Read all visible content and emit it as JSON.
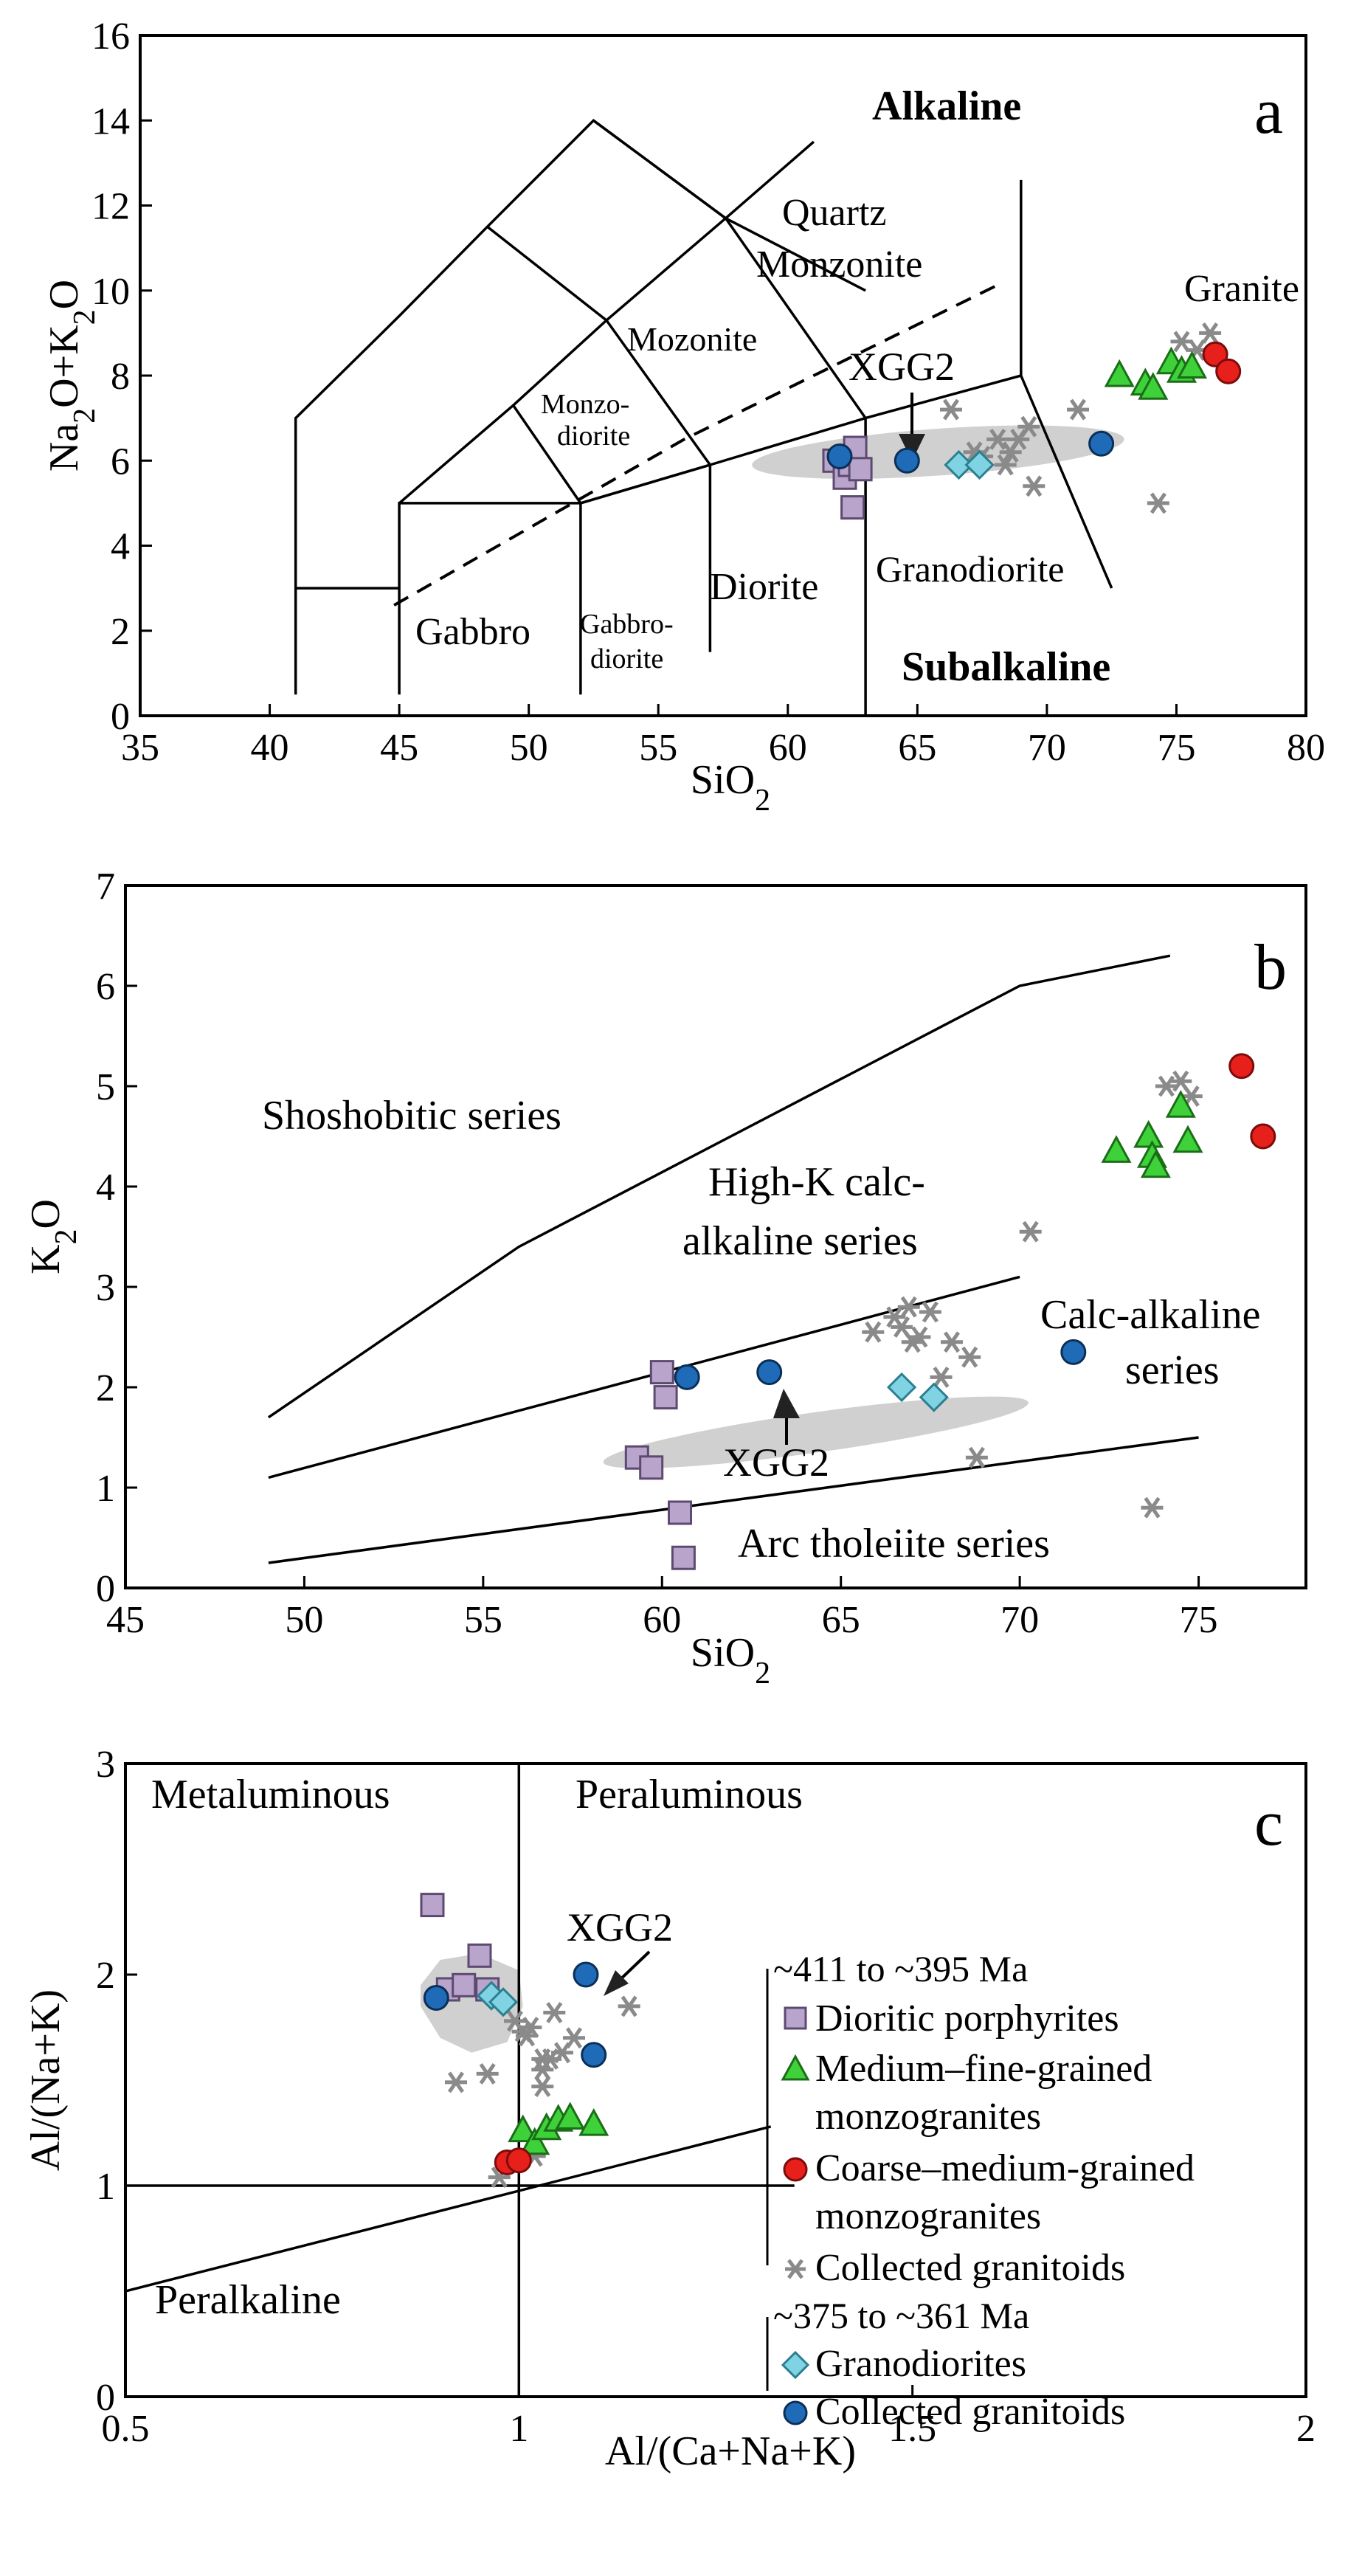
{
  "chart_data": [
    {
      "type": "scatter",
      "panel_label": "a",
      "title": "",
      "xlabel": "SiO<sub>2</sub>",
      "ylabel": "Na<sub>2</sub>O+K<sub>2</sub>O",
      "xlim": [
        35,
        80
      ],
      "ylim": [
        0,
        16
      ],
      "xticks": [
        35,
        40,
        45,
        50,
        55,
        60,
        65,
        70,
        75,
        80
      ],
      "yticks": [
        0,
        2,
        4,
        6,
        8,
        10,
        12,
        14,
        16
      ],
      "grid": false,
      "field_labels": {
        "alkaline": "Alkaline",
        "subalkaline": "Subalkaline",
        "quartz": "Quartz",
        "monzonite": "Monzonite",
        "granite": "Granite",
        "mozonite": "Mozonite",
        "monzo1": "Monzo-",
        "monzo2": "diorite",
        "gabbro": "Gabbro",
        "gabbrodiorite1": "Gabbro-",
        "gabbrodiorite2": "diorite",
        "diorite": "Diorite",
        "granodiorite": "Granodiorite"
      },
      "annotation": "XGG2",
      "series": [
        {
          "name": "Dioritic porphyrites",
          "marker": "square",
          "color": "#b9a4cc",
          "x": [
            61.8,
            62.2,
            62.4,
            62.5,
            62.6,
            62.8
          ],
          "y": [
            6.0,
            5.6,
            5.9,
            4.9,
            6.3,
            5.8
          ]
        },
        {
          "name": "Medium–fine-grained monzogranites",
          "marker": "triangle",
          "color": "#3fd13a",
          "x": [
            72.8,
            73.8,
            74.1,
            74.8,
            75.2,
            75.6
          ],
          "y": [
            8.0,
            7.8,
            7.7,
            8.3,
            8.1,
            8.2
          ]
        },
        {
          "name": "Coarse–medium-grained monzogranites",
          "marker": "circle",
          "color": "#e8201c",
          "x": [
            76.5,
            77.0
          ],
          "y": [
            8.5,
            8.1
          ]
        },
        {
          "name": "Collected granitoids",
          "marker": "asterisk",
          "color": "#8a8a8a",
          "x": [
            66.3,
            67.2,
            67.5,
            68.1,
            68.4,
            68.6,
            68.9,
            69.3,
            69.5,
            71.2,
            74.3,
            75.2,
            75.8,
            76.3
          ],
          "y": [
            7.2,
            6.2,
            6.1,
            6.5,
            5.9,
            6.2,
            6.5,
            6.8,
            5.4,
            7.2,
            5.0,
            8.8,
            8.6,
            9.0
          ]
        },
        {
          "name": "Granodiorites",
          "marker": "diamond",
          "color": "#7fd3e3",
          "x": [
            66.6,
            67.4
          ],
          "y": [
            5.9,
            5.9
          ]
        },
        {
          "name": "Collected granitoids",
          "marker": "circle",
          "color": "#1f6bb8",
          "x": [
            62.0,
            64.6,
            72.1
          ],
          "y": [
            6.1,
            6.0,
            6.4
          ]
        }
      ]
    },
    {
      "type": "scatter",
      "panel_label": "b",
      "title": "",
      "xlabel": "SiO<sub>2</sub>",
      "ylabel": "K<sub>2</sub>O",
      "xlim": [
        45,
        78
      ],
      "ylim": [
        0,
        7
      ],
      "xticks": [
        45,
        50,
        55,
        60,
        65,
        70,
        75
      ],
      "yticks": [
        0,
        1,
        2,
        3,
        4,
        5,
        6,
        7
      ],
      "grid": false,
      "field_labels": {
        "shoshonitic": "Shoshobitic series",
        "highk1": "High-K calc-",
        "highk2": "alkaline series",
        "calcalk1": "Calc-alkaline",
        "calcalk2": "series",
        "arc": "Arc tholeiite series"
      },
      "annotation": "XGG2",
      "series": [
        {
          "name": "Dioritic porphyrites",
          "marker": "square",
          "color": "#b9a4cc",
          "x": [
            59.3,
            59.7,
            60.0,
            60.1,
            60.5,
            60.6
          ],
          "y": [
            1.3,
            1.2,
            2.15,
            1.9,
            0.75,
            0.3
          ]
        },
        {
          "name": "Medium–fine-grained monzogranites",
          "marker": "triangle",
          "color": "#3fd13a",
          "x": [
            72.7,
            73.6,
            73.7,
            73.8,
            74.5,
            74.7
          ],
          "y": [
            4.35,
            4.5,
            4.3,
            4.2,
            4.8,
            4.45
          ]
        },
        {
          "name": "Coarse–medium-grained monzogranites",
          "marker": "circle",
          "color": "#e8201c",
          "x": [
            76.2,
            76.8
          ],
          "y": [
            5.2,
            4.5
          ]
        },
        {
          "name": "Collected granitoids",
          "marker": "asterisk",
          "color": "#8a8a8a",
          "x": [
            65.9,
            66.7,
            66.9,
            67.2,
            67.5,
            67.8,
            68.1,
            68.6,
            68.8,
            70.3,
            73.7,
            74.1,
            74.5,
            74.8,
            66.5,
            67.0
          ],
          "y": [
            2.55,
            2.6,
            2.8,
            2.5,
            2.75,
            2.1,
            2.45,
            2.3,
            1.3,
            3.55,
            0.8,
            5.0,
            5.05,
            4.9,
            2.7,
            2.45
          ]
        },
        {
          "name": "Granodiorites",
          "marker": "diamond",
          "color": "#7fd3e3",
          "x": [
            66.7,
            67.6
          ],
          "y": [
            2.0,
            1.9
          ]
        },
        {
          "name": "Collected granitoids",
          "marker": "circle",
          "color": "#1f6bb8",
          "x": [
            60.7,
            63.0,
            71.5
          ],
          "y": [
            2.1,
            2.15,
            2.35
          ]
        }
      ]
    },
    {
      "type": "scatter",
      "panel_label": "c",
      "title": "",
      "xlabel": "Al/(Ca+Na+K)",
      "ylabel": "Al/(Na+K)",
      "xlim": [
        0.5,
        2.0
      ],
      "ylim": [
        0,
        3
      ],
      "xticks": [
        0.5,
        1,
        1.5,
        2
      ],
      "yticks": [
        0,
        1,
        2,
        3
      ],
      "grid": false,
      "field_labels": {
        "metaluminous": "Metaluminous",
        "peraluminous": "Peraluminous",
        "peralkaline": "Peralkaline"
      },
      "annotation": "XGG2",
      "legend": {
        "group1": "~411 to ~395 Ma",
        "group2": "~375 to ~361 Ma",
        "items1": [
          "Dioritic porphyrites",
          "Medium–fine-grained",
          "monzogranites",
          "Coarse–medium-grained",
          "monzogranites",
          "Collected granitoids"
        ],
        "items2": [
          "Granodiorites",
          "Collected granitoids"
        ]
      },
      "series": [
        {
          "name": "Dioritic porphyrites",
          "marker": "square",
          "color": "#b9a4cc",
          "x": [
            0.89,
            0.91,
            0.93,
            0.95,
            0.96
          ],
          "y": [
            2.33,
            1.93,
            1.95,
            2.09,
            1.93
          ]
        },
        {
          "name": "Medium–fine-grained monzogranites",
          "marker": "triangle",
          "color": "#3fd13a",
          "x": [
            1.005,
            1.02,
            1.035,
            1.05,
            1.065,
            1.095
          ],
          "y": [
            1.26,
            1.2,
            1.27,
            1.31,
            1.32,
            1.29
          ]
        },
        {
          "name": "Coarse–medium-grained monzogranites",
          "marker": "circle",
          "color": "#e8201c",
          "x": [
            0.985,
            1.0
          ],
          "y": [
            1.11,
            1.12
          ]
        },
        {
          "name": "Collected granitoids",
          "marker": "asterisk",
          "color": "#8a8a8a",
          "x": [
            0.92,
            0.96,
            0.995,
            1.005,
            1.015,
            1.03,
            1.04,
            1.055,
            1.03,
            1.045,
            1.07,
            1.14,
            0.975,
            1.02,
            1.03,
            1.01
          ],
          "y": [
            1.49,
            1.53,
            1.78,
            1.73,
            1.75,
            1.6,
            1.6,
            1.63,
            1.47,
            1.82,
            1.7,
            1.85,
            1.04,
            1.14,
            1.55,
            1.71
          ]
        },
        {
          "name": "Granodiorites",
          "marker": "diamond",
          "color": "#7fd3e3",
          "x": [
            0.965,
            0.98
          ],
          "y": [
            1.9,
            1.87
          ]
        },
        {
          "name": "Collected granitoids",
          "marker": "circle",
          "color": "#1f6bb8",
          "x": [
            0.895,
            1.085,
            1.095
          ],
          "y": [
            1.89,
            2.0,
            1.62
          ]
        }
      ]
    }
  ]
}
